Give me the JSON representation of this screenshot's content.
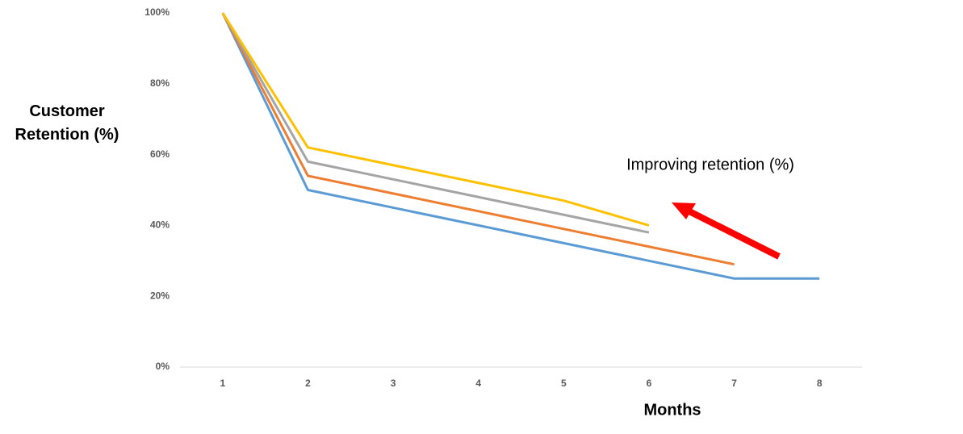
{
  "chart_data": {
    "type": "line",
    "annotation": "Improving retention (%)",
    "x_label": "Months",
    "y_label": "Customer Retention (%)",
    "categories": [
      "1",
      "2",
      "3",
      "4",
      "5",
      "6",
      "7",
      "8"
    ],
    "series": [
      {
        "color": "#5b9bd5",
        "values": [
          100,
          50,
          45,
          40,
          35,
          30,
          25,
          25
        ]
      },
      {
        "color": "#ed7d31",
        "values": [
          100,
          54,
          49,
          44,
          39,
          34,
          29,
          null
        ]
      },
      {
        "color": "#a5a5a5",
        "values": [
          100,
          58,
          53,
          48,
          43,
          38,
          null,
          null
        ]
      },
      {
        "color": "#ffc000",
        "values": [
          100,
          62,
          57,
          52,
          47,
          40,
          null,
          null
        ]
      }
    ],
    "ylim": [
      0,
      100
    ],
    "yticks": [
      {
        "value": 0,
        "label": "0%"
      },
      {
        "value": 20,
        "label": "20%"
      },
      {
        "value": 40,
        "label": "40%"
      },
      {
        "value": 60,
        "label": "60%"
      },
      {
        "value": 80,
        "label": "80%"
      },
      {
        "value": 100,
        "label": "100%"
      }
    ],
    "grid": false
  }
}
